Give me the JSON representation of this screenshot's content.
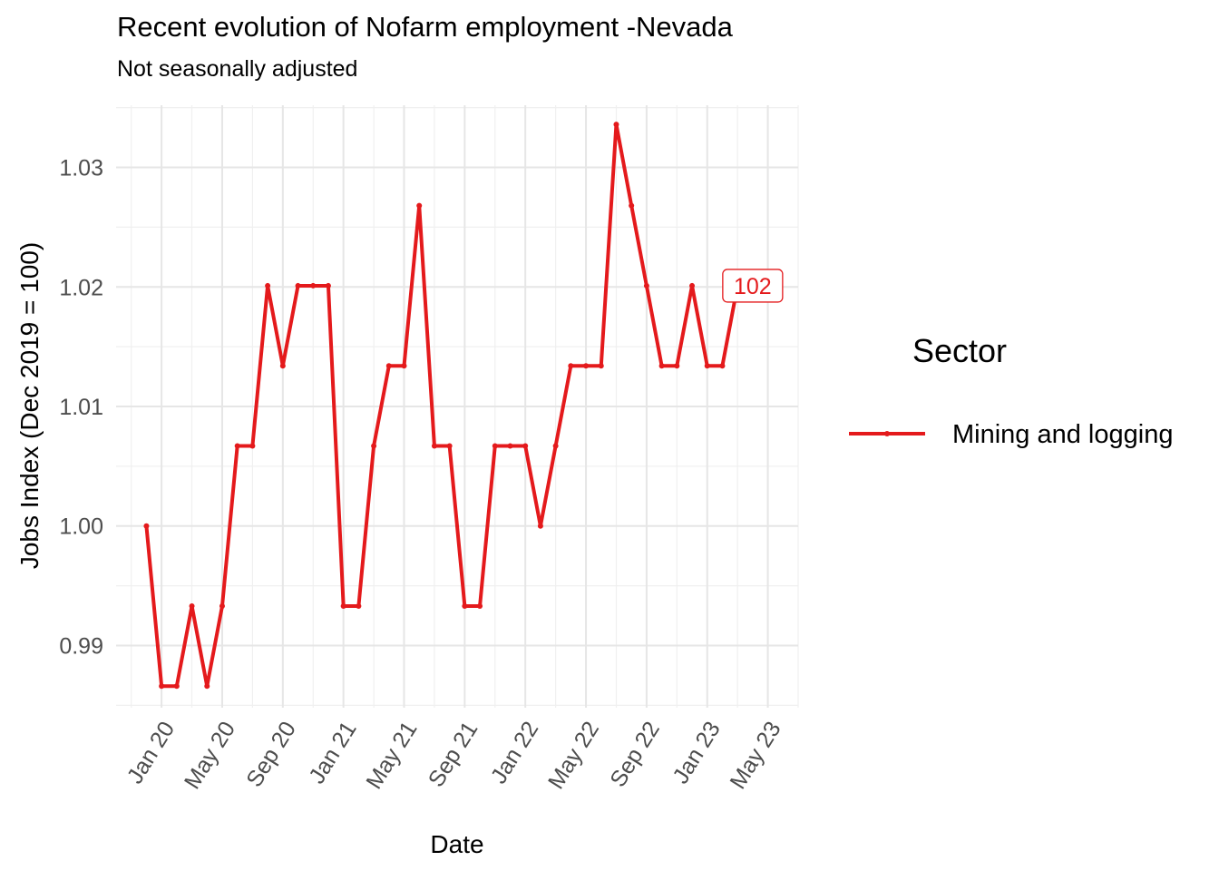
{
  "chart_data": {
    "type": "line",
    "title": "Recent evolution of Nofarm employment -Nevada",
    "subtitle": "Not seasonally adjusted",
    "xlabel": "Date",
    "ylabel": "Jobs Index (Dec 2019 = 100)",
    "x_tick_labels": [
      {
        "date": "2020-01",
        "label": "Jan 20"
      },
      {
        "date": "2020-05",
        "label": "May 20"
      },
      {
        "date": "2020-09",
        "label": "Sep 20"
      },
      {
        "date": "2021-01",
        "label": "Jan 21"
      },
      {
        "date": "2021-05",
        "label": "May 21"
      },
      {
        "date": "2021-09",
        "label": "Sep 21"
      },
      {
        "date": "2022-01",
        "label": "Jan 22"
      },
      {
        "date": "2022-05",
        "label": "May 22"
      },
      {
        "date": "2022-09",
        "label": "Sep 22"
      },
      {
        "date": "2023-01",
        "label": "Jan 23"
      },
      {
        "date": "2023-05",
        "label": "May 23"
      }
    ],
    "y_ticks": [
      "0.99",
      "1.00",
      "1.01",
      "1.02",
      "1.03"
    ],
    "xlim": [
      "2019-10",
      "2023-07"
    ],
    "ylim": [
      0.9848,
      1.0352
    ],
    "grid": true,
    "legend": {
      "title": "Sector",
      "position": "right"
    },
    "series": [
      {
        "name": "Mining and logging",
        "color": "#e41a1c",
        "x": [
          "2019-12",
          "2020-01",
          "2020-02",
          "2020-03",
          "2020-04",
          "2020-05",
          "2020-06",
          "2020-07",
          "2020-08",
          "2020-09",
          "2020-10",
          "2020-11",
          "2020-12",
          "2021-01",
          "2021-02",
          "2021-03",
          "2021-04",
          "2021-05",
          "2021-06",
          "2021-07",
          "2021-08",
          "2021-09",
          "2021-10",
          "2021-11",
          "2021-12",
          "2022-01",
          "2022-02",
          "2022-03",
          "2022-04",
          "2022-05",
          "2022-06",
          "2022-07",
          "2022-08",
          "2022-09",
          "2022-10",
          "2022-11",
          "2022-12",
          "2023-01",
          "2023-02",
          "2023-03",
          "2023-04",
          "2023-05"
        ],
        "values": [
          1.0,
          0.9866,
          0.9866,
          0.9933,
          0.9866,
          0.9933,
          1.0067,
          1.0067,
          1.0201,
          1.0134,
          1.0201,
          1.0201,
          1.0201,
          0.9933,
          0.9933,
          1.0067,
          1.0134,
          1.0134,
          1.0268,
          1.0067,
          1.0067,
          0.9933,
          0.9933,
          1.0067,
          1.0067,
          1.0067,
          1.0,
          1.0067,
          1.0134,
          1.0134,
          1.0134,
          1.0336,
          1.0268,
          1.0201,
          1.0134,
          1.0134,
          1.0201,
          1.0134,
          1.0134,
          1.0201,
          1.0201,
          1.0201
        ]
      }
    ],
    "annotations": [
      {
        "text": "102",
        "x": "2023-04",
        "y": 1.0201
      }
    ]
  }
}
